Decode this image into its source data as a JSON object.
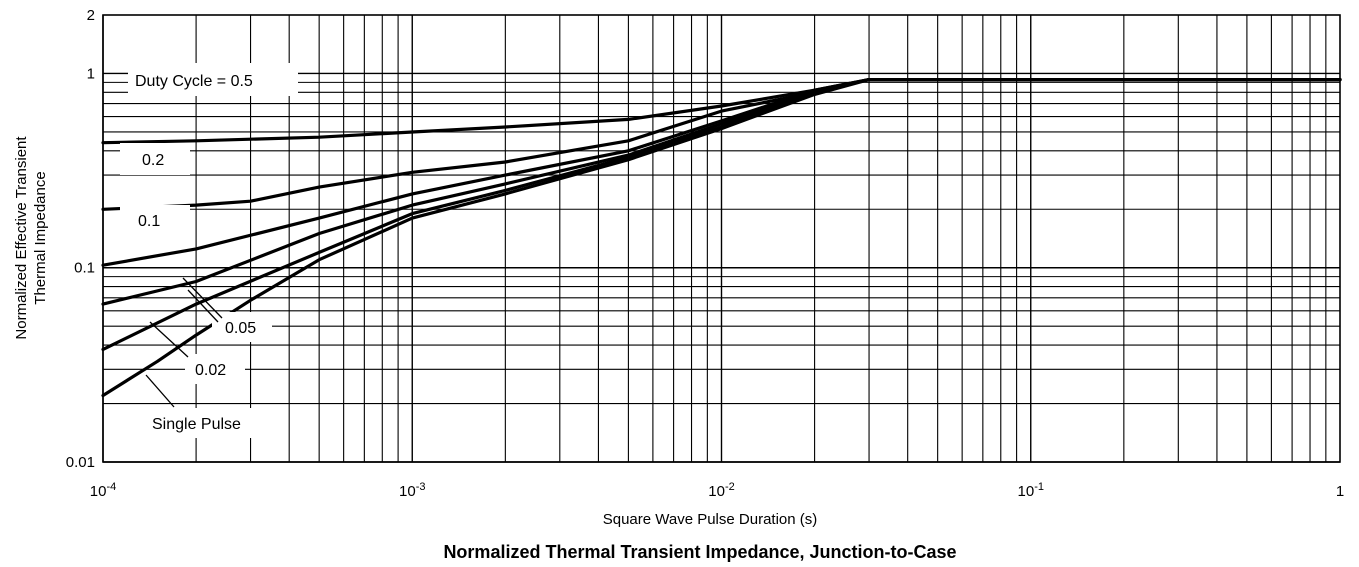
{
  "figure": {
    "caption": "Normalized Thermal Transient Impedance, Junction-to-Case"
  },
  "chart_data": {
    "type": "line",
    "xscale": "log",
    "yscale": "log",
    "xlim": [
      0.0001,
      1
    ],
    "ylim": [
      0.01,
      2
    ],
    "grid": true,
    "legend": "inline labels",
    "xlabel": "Square Wave Pulse Duration (s)",
    "ylabel_line1": "Normalized Effective Transient",
    "ylabel_line2": "Thermal Impedance",
    "x_ticks": [
      {
        "value": 0.0001,
        "base": "10",
        "exp": "-4"
      },
      {
        "value": 0.001,
        "base": "10",
        "exp": "-3"
      },
      {
        "value": 0.01,
        "base": "10",
        "exp": "-2"
      },
      {
        "value": 0.1,
        "base": "10",
        "exp": "-1"
      },
      {
        "value": 1,
        "base": "1",
        "exp": ""
      }
    ],
    "y_ticks": [
      {
        "value": 2,
        "label": "2"
      },
      {
        "value": 1,
        "label": "1"
      },
      {
        "value": 0.1,
        "label": "0.1"
      },
      {
        "value": 0.01,
        "label": "0.01"
      }
    ],
    "series": [
      {
        "name": "Duty Cycle = 0.5",
        "x": [
          0.0001,
          0.0002,
          0.0005,
          0.001,
          0.002,
          0.005,
          0.01,
          0.02,
          0.03,
          1
        ],
        "y": [
          0.44,
          0.45,
          0.47,
          0.5,
          0.53,
          0.58,
          0.68,
          0.82,
          0.93,
          0.93
        ]
      },
      {
        "name": "0.2",
        "x": [
          0.0001,
          0.0002,
          0.0003,
          0.0005,
          0.001,
          0.002,
          0.005,
          0.01,
          0.02,
          0.03,
          1
        ],
        "y": [
          0.2,
          0.21,
          0.22,
          0.26,
          0.31,
          0.35,
          0.45,
          0.64,
          0.8,
          0.93,
          0.93
        ]
      },
      {
        "name": "0.1",
        "x": [
          0.0001,
          0.0002,
          0.0005,
          0.001,
          0.002,
          0.005,
          0.01,
          0.02,
          0.03,
          1
        ],
        "y": [
          0.103,
          0.125,
          0.18,
          0.24,
          0.3,
          0.4,
          0.57,
          0.82,
          0.93,
          0.93
        ]
      },
      {
        "name": "0.05",
        "x": [
          0.0001,
          0.0002,
          0.0005,
          0.001,
          0.002,
          0.005,
          0.01,
          0.02,
          0.03,
          1
        ],
        "y": [
          0.065,
          0.085,
          0.15,
          0.21,
          0.27,
          0.38,
          0.55,
          0.8,
          0.93,
          0.93
        ]
      },
      {
        "name": "0.02",
        "x": [
          0.0001,
          0.0002,
          0.0005,
          0.001,
          0.002,
          0.005,
          0.01,
          0.02,
          0.03,
          1
        ],
        "y": [
          0.038,
          0.065,
          0.12,
          0.19,
          0.25,
          0.37,
          0.53,
          0.8,
          0.93,
          0.93
        ]
      },
      {
        "name": "Single Pulse",
        "x": [
          0.0001,
          0.00015,
          0.0002,
          0.0003,
          0.0005,
          0.001,
          0.002,
          0.005,
          0.01,
          0.02,
          0.03,
          1
        ],
        "y": [
          0.022,
          0.033,
          0.045,
          0.068,
          0.11,
          0.18,
          0.24,
          0.36,
          0.52,
          0.78,
          0.93,
          0.93
        ]
      }
    ],
    "annotations": [
      {
        "text": "Duty Cycle = 0.5"
      },
      {
        "text": "0.2"
      },
      {
        "text": "0.1"
      },
      {
        "text": "0.05"
      },
      {
        "text": "0.02"
      },
      {
        "text": "Single Pulse"
      }
    ]
  }
}
